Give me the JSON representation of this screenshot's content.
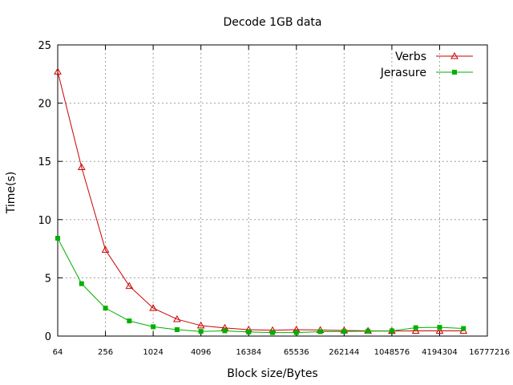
{
  "chart_data": {
    "type": "line",
    "title": "Decode 1GB data",
    "xlabel": "Block size/Bytes",
    "ylabel": "Time(s)",
    "x_scale": "log2",
    "xlim": [
      64,
      16777216
    ],
    "ylim": [
      0,
      25
    ],
    "x_ticks": [
      64,
      256,
      1024,
      4096,
      16384,
      65536,
      262144,
      1048576,
      4194304,
      16777216
    ],
    "x_tick_labels": [
      "64",
      "256",
      "1024",
      "4096",
      "16384",
      "65536",
      "262144",
      "1048576",
      "4194304",
      "16777216"
    ],
    "y_ticks": [
      0,
      5,
      10,
      15,
      20,
      25
    ],
    "y_tick_labels": [
      "0",
      "5",
      "10",
      "15",
      "20",
      "25"
    ],
    "grid": true,
    "legend_position": "top-right",
    "x": [
      64,
      128,
      256,
      512,
      1024,
      2048,
      4096,
      8192,
      16384,
      32768,
      65536,
      131072,
      262144,
      524288,
      1048576,
      2097152,
      4194304,
      8388608
    ],
    "series": [
      {
        "name": "Verbs",
        "color": "#cc0000",
        "marker": "triangle-open",
        "values": [
          22.7,
          14.5,
          7.4,
          4.3,
          2.4,
          1.45,
          0.9,
          0.7,
          0.55,
          0.5,
          0.55,
          0.52,
          0.48,
          0.45,
          0.43,
          0.45,
          0.45,
          0.45
        ]
      },
      {
        "name": "Jerasure",
        "color": "#00b000",
        "marker": "square-filled",
        "values": [
          8.4,
          4.5,
          2.4,
          1.3,
          0.8,
          0.55,
          0.4,
          0.45,
          0.35,
          0.3,
          0.3,
          0.38,
          0.4,
          0.42,
          0.45,
          0.72,
          0.75,
          0.65
        ]
      }
    ]
  }
}
